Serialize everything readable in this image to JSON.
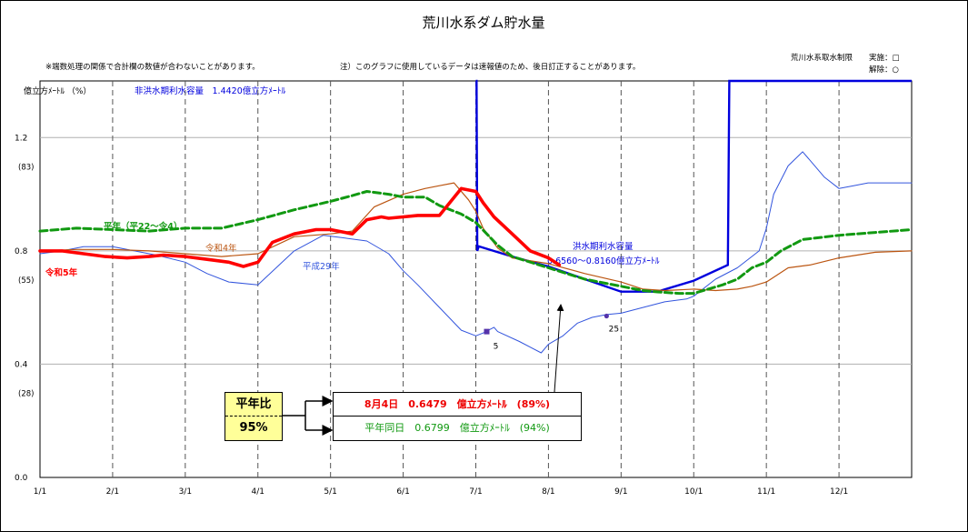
{
  "chart_data": {
    "type": "line",
    "title": "荒川水系ダム貯水量",
    "notes": {
      "rounding": "※端数処理の関係で合計欄の数値が合わないことがあります。",
      "preliminary": "注）このグラフに使用しているデータは速報値のため、後日訂正することがあります。"
    },
    "restriction_legend": {
      "title": "荒川水系取水制限",
      "enacted": "実施：□",
      "lifted": "解除：○"
    },
    "ylabel": "億立方ﾒｰﾄﾙ （%）",
    "ylim": [
      0,
      1.4
    ],
    "yticks": [
      {
        "value": 0.0,
        "label": "0.0",
        "pct": ""
      },
      {
        "value": 0.4,
        "label": "0.4",
        "pct": "(28)"
      },
      {
        "value": 0.8,
        "label": "0.8",
        "pct": "(55)"
      },
      {
        "value": 1.2,
        "label": "1.2",
        "pct": "(83)"
      }
    ],
    "xlim": [
      0,
      12
    ],
    "xticks": [
      "1/1",
      "2/1",
      "3/1",
      "4/1",
      "5/1",
      "6/1",
      "7/1",
      "8/1",
      "9/1",
      "10/1",
      "11/1",
      "12/1"
    ],
    "grid": true,
    "capacity": {
      "non_flood_label": "非洪水期利水容量　1.4420億立方ﾒｰﾄﾙ",
      "non_flood_value": 1.442,
      "flood_label_1": "洪水期利水容量",
      "flood_label_2": "0.6560～0.8160億立方ﾒｰﾄﾙ",
      "color": "#0000dd",
      "x": [
        6.0,
        6.01,
        6.02,
        6.04,
        6.5,
        7.0,
        7.5,
        8.0,
        8.5,
        9.0,
        9.47,
        9.49,
        9.5,
        12.0
      ],
      "values": [
        1.442,
        1.442,
        0.8,
        0.816,
        0.78,
        0.745,
        0.7,
        0.656,
        0.656,
        0.695,
        0.75,
        1.442,
        1.442,
        1.442
      ]
    },
    "series": [
      {
        "name": "令和5年",
        "color": "#ff0000",
        "width": 3.6,
        "dash": "",
        "x": [
          0,
          0.3,
          0.6,
          0.9,
          1.2,
          1.5,
          1.7,
          2.0,
          2.3,
          2.6,
          2.8,
          3.0,
          3.2,
          3.5,
          3.8,
          4.0,
          4.3,
          4.5,
          4.7,
          4.8,
          5.0,
          5.2,
          5.5,
          5.8,
          6.0,
          6.1,
          6.25,
          6.5,
          6.75,
          7.0,
          7.15
        ],
        "values": [
          0.8,
          0.8,
          0.79,
          0.78,
          0.775,
          0.78,
          0.785,
          0.78,
          0.77,
          0.76,
          0.745,
          0.76,
          0.83,
          0.86,
          0.875,
          0.875,
          0.86,
          0.91,
          0.92,
          0.915,
          0.92,
          0.925,
          0.925,
          1.02,
          1.01,
          0.97,
          0.92,
          0.86,
          0.8,
          0.775,
          0.75
        ]
      },
      {
        "name": "平年（平22～令4）",
        "color": "#119911",
        "width": 3.0,
        "dash": "8,4",
        "x": [
          0,
          0.5,
          1.0,
          1.5,
          2.0,
          2.5,
          3.0,
          3.5,
          4.0,
          4.3,
          4.5,
          4.8,
          5.0,
          5.3,
          5.5,
          5.8,
          6.0,
          6.3,
          6.5,
          7.0,
          7.5,
          8.0,
          8.3,
          8.5,
          8.8,
          9.0,
          9.2,
          9.4,
          9.6,
          9.8,
          10.0,
          10.2,
          10.5,
          11.0,
          11.5,
          12.0
        ],
        "values": [
          0.87,
          0.88,
          0.875,
          0.87,
          0.88,
          0.88,
          0.91,
          0.945,
          0.975,
          0.995,
          1.01,
          1.0,
          0.99,
          0.99,
          0.96,
          0.93,
          0.9,
          0.82,
          0.78,
          0.74,
          0.7,
          0.675,
          0.66,
          0.655,
          0.65,
          0.65,
          0.665,
          0.68,
          0.7,
          0.74,
          0.76,
          0.8,
          0.84,
          0.855,
          0.865,
          0.875
        ]
      },
      {
        "name": "令和4年",
        "color": "#bb5511",
        "width": 1.2,
        "dash": "",
        "x": [
          0,
          0.5,
          1.0,
          1.5,
          2.0,
          2.5,
          3.0,
          3.5,
          4.0,
          4.3,
          4.6,
          5.0,
          5.3,
          5.5,
          5.7,
          5.9,
          6.0,
          6.1,
          6.3,
          6.5,
          7.0,
          7.5,
          8.0,
          8.3,
          8.6,
          9.0,
          9.3,
          9.6,
          9.8,
          10.0,
          10.3,
          10.6,
          11.0,
          11.5,
          12.0
        ],
        "values": [
          0.8,
          0.805,
          0.805,
          0.8,
          0.79,
          0.78,
          0.79,
          0.85,
          0.86,
          0.87,
          0.955,
          1.0,
          1.02,
          1.03,
          1.04,
          0.98,
          0.94,
          0.88,
          0.81,
          0.775,
          0.755,
          0.72,
          0.69,
          0.665,
          0.66,
          0.665,
          0.66,
          0.665,
          0.675,
          0.69,
          0.74,
          0.75,
          0.775,
          0.795,
          0.8
        ]
      },
      {
        "name": "平成29年",
        "color": "#3355dd",
        "width": 1.0,
        "dash": "",
        "x": [
          0,
          0.3,
          0.6,
          1.0,
          1.3,
          1.6,
          2.0,
          2.3,
          2.6,
          3.0,
          3.5,
          3.9,
          4.2,
          4.5,
          4.8,
          5.0,
          5.2,
          5.5,
          5.8,
          6.0,
          6.1,
          6.25,
          6.3,
          6.6,
          6.9,
          7.0,
          7.2,
          7.4,
          7.6,
          7.8,
          8.0,
          8.3,
          8.6,
          8.9,
          9.0,
          9.3,
          9.6,
          9.9,
          10.0,
          10.1,
          10.3,
          10.5,
          10.6,
          10.8,
          11.0,
          11.2,
          11.4,
          11.6,
          11.8,
          12.0
        ],
        "values": [
          0.79,
          0.8,
          0.815,
          0.815,
          0.8,
          0.785,
          0.76,
          0.72,
          0.69,
          0.68,
          0.8,
          0.855,
          0.845,
          0.835,
          0.79,
          0.73,
          0.68,
          0.6,
          0.52,
          0.5,
          0.51,
          0.53,
          0.515,
          0.48,
          0.44,
          0.47,
          0.5,
          0.545,
          0.565,
          0.575,
          0.58,
          0.6,
          0.62,
          0.63,
          0.64,
          0.7,
          0.74,
          0.8,
          0.88,
          1.0,
          1.1,
          1.15,
          1.12,
          1.06,
          1.02,
          1.03,
          1.04,
          1.04,
          1.04,
          1.04
        ]
      }
    ],
    "restriction_marks": [
      {
        "label": "5",
        "x": 6.15,
        "value": 0.515,
        "kind": "enacted"
      },
      {
        "label": "25",
        "x": 7.8,
        "value": 0.57,
        "kind": "lifted"
      }
    ],
    "annotations": [
      {
        "text": "令和5年",
        "series": 0
      },
      {
        "text": "平年（平22～令4）",
        "series": 1
      },
      {
        "text": "令和4年",
        "series": 2
      },
      {
        "text": "平成29年",
        "series": 3
      }
    ],
    "summary": {
      "ratio_label": "平年比",
      "ratio_value": "95%",
      "today": "8月4日　0.6479　億立方ﾒｰﾄﾙ　(89%)",
      "normal": "平年同日　0.6799　億立方ﾒｰﾄﾙ　(94%)"
    }
  }
}
